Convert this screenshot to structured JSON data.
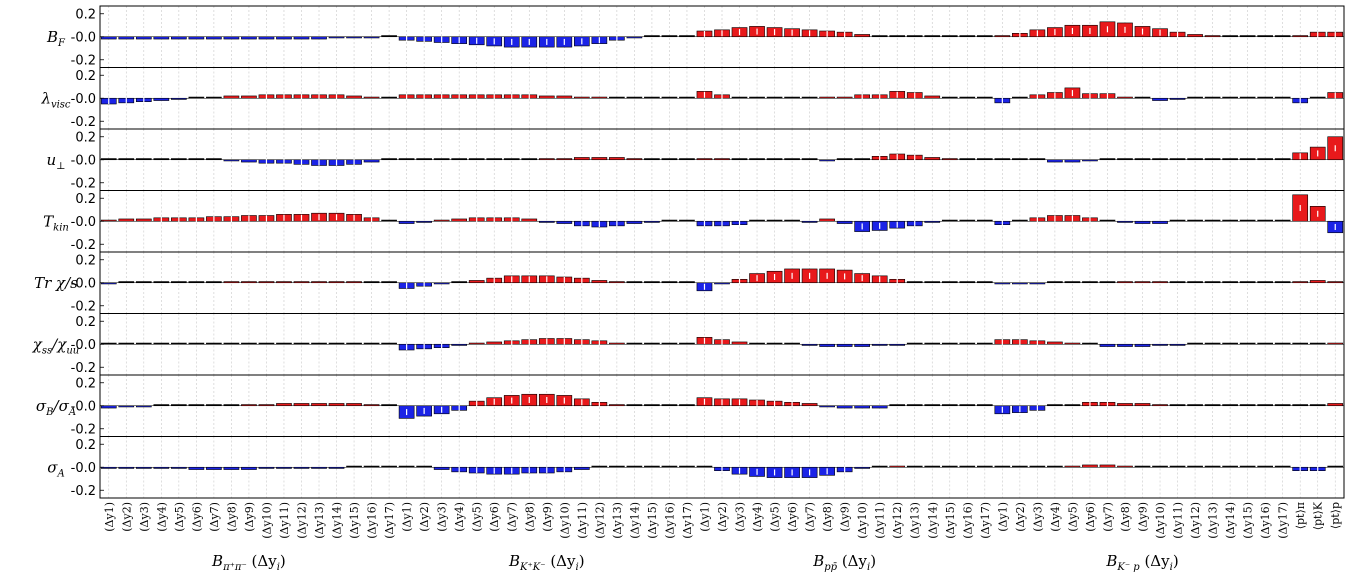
{
  "chart_data": {
    "type": "bar",
    "ylim": [
      -0.25,
      0.25
    ],
    "yticks": [
      "0.2",
      "-0.0",
      "-0.2"
    ],
    "grid": "vertical dashed",
    "colors": {
      "positive": "#e8191b",
      "negative": "#1b23e6",
      "edge": "#000000"
    },
    "groups": [
      {
        "label": "B_{π⁺π⁻}(Δy_i)",
        "base": "B",
        "sub": "π⁺π⁻",
        "arg": "(Δy",
        "argsub": "i",
        "tail": ")",
        "count": 17
      },
      {
        "label": "B_{K⁺K⁻}(Δy_i)",
        "base": "B",
        "sub": "K⁺K⁻",
        "arg": "(Δy",
        "argsub": "i",
        "tail": ")",
        "count": 17
      },
      {
        "label": "B_{pp̄}(Δy_i)",
        "base": "B",
        "sub": "pp̄",
        "arg": "(Δy",
        "argsub": "i",
        "tail": ")",
        "count": 17
      },
      {
        "label": "B_{K⁻p}(Δy_i)",
        "base": "B",
        "sub": "K⁻ p",
        "arg": "(Δy",
        "argsub": "i",
        "tail": ")",
        "count": 17
      }
    ],
    "categories": [
      "(Δy1)",
      "(Δy2)",
      "(Δy3)",
      "(Δy4)",
      "(Δy5)",
      "(Δy6)",
      "(Δy7)",
      "(Δy8)",
      "(Δy9)",
      "(Δy10)",
      "(Δy11)",
      "(Δy12)",
      "(Δy13)",
      "(Δy14)",
      "(Δy15)",
      "(Δy16)",
      "(Δy17)",
      "(Δy1)",
      "(Δy2)",
      "(Δy3)",
      "(Δy4)",
      "(Δy5)",
      "(Δy6)",
      "(Δy7)",
      "(Δy8)",
      "(Δy9)",
      "(Δy10)",
      "(Δy11)",
      "(Δy12)",
      "(Δy13)",
      "(Δy14)",
      "(Δy15)",
      "(Δy16)",
      "(Δy17)",
      "(Δy1)",
      "(Δy2)",
      "(Δy3)",
      "(Δy4)",
      "(Δy5)",
      "(Δy6)",
      "(Δy7)",
      "(Δy8)",
      "(Δy9)",
      "(Δy10)",
      "(Δy11)",
      "(Δy12)",
      "(Δy13)",
      "(Δy14)",
      "(Δy15)",
      "(Δy16)",
      "(Δy17)",
      "(Δy1)",
      "(Δy2)",
      "(Δy3)",
      "(Δy4)",
      "(Δy5)",
      "(Δy6)",
      "(Δy7)",
      "(Δy8)",
      "(Δy9)",
      "(Δy10)",
      "(Δy11)",
      "(Δy12)",
      "(Δy13)",
      "(Δy14)",
      "(Δy15)",
      "(Δy16)",
      "(Δy17)",
      "⟨pt⟩π",
      "⟨pt⟩K",
      "⟨pt⟩p"
    ],
    "series": [
      {
        "name": "B_F",
        "label": {
          "base": "B",
          "sub": "F"
        },
        "values": [
          -0.02,
          -0.02,
          -0.02,
          -0.02,
          -0.02,
          -0.02,
          -0.02,
          -0.02,
          -0.02,
          -0.02,
          -0.02,
          -0.02,
          -0.02,
          -0.01,
          -0.01,
          -0.01,
          0.0,
          -0.03,
          -0.04,
          -0.05,
          -0.06,
          -0.07,
          -0.08,
          -0.09,
          -0.09,
          -0.09,
          -0.09,
          -0.08,
          -0.06,
          -0.03,
          -0.01,
          0.0,
          0.0,
          0.0,
          0.05,
          0.06,
          0.08,
          0.09,
          0.08,
          0.07,
          0.06,
          0.05,
          0.04,
          0.02,
          0.0,
          0.0,
          0.0,
          0.0,
          0.0,
          0.0,
          0.0,
          0.01,
          0.03,
          0.06,
          0.08,
          0.1,
          0.1,
          0.13,
          0.12,
          0.09,
          0.07,
          0.04,
          0.02,
          0.01,
          0.0,
          0.0,
          0.0,
          0.0,
          0.01,
          0.04,
          0.04
        ]
      },
      {
        "name": "λ_visc",
        "label": {
          "base": "λ",
          "sub": "visc"
        },
        "values": [
          -0.05,
          -0.04,
          -0.03,
          -0.02,
          -0.01,
          0.0,
          0.0,
          0.02,
          0.02,
          0.03,
          0.03,
          0.03,
          0.03,
          0.03,
          0.02,
          0.01,
          0.0,
          0.03,
          0.03,
          0.03,
          0.03,
          0.03,
          0.03,
          0.03,
          0.03,
          0.02,
          0.02,
          0.01,
          0.01,
          0.0,
          0.0,
          0.0,
          0.0,
          0.0,
          0.06,
          0.03,
          0.0,
          0.0,
          0.0,
          0.0,
          0.0,
          0.01,
          0.01,
          0.03,
          0.03,
          0.06,
          0.05,
          0.02,
          0.0,
          0.0,
          0.0,
          -0.04,
          0.0,
          0.03,
          0.05,
          0.09,
          0.04,
          0.04,
          0.01,
          0.0,
          -0.02,
          -0.01,
          0.0,
          0.0,
          0.0,
          0.0,
          0.0,
          0.0,
          -0.04,
          0.0,
          0.05
        ]
      },
      {
        "name": "u_⊥",
        "label": {
          "base": "u",
          "sub": "⊥"
        },
        "values": [
          0.0,
          0.0,
          0.0,
          0.0,
          0.0,
          0.0,
          0.0,
          -0.01,
          -0.02,
          -0.03,
          -0.03,
          -0.04,
          -0.05,
          -0.05,
          -0.04,
          -0.02,
          0.0,
          0.0,
          0.0,
          0.0,
          0.0,
          0.0,
          0.0,
          0.0,
          0.0,
          0.01,
          0.01,
          0.02,
          0.02,
          0.02,
          0.01,
          0.0,
          0.0,
          0.0,
          0.01,
          0.01,
          0.0,
          0.0,
          0.0,
          0.0,
          0.0,
          -0.01,
          0.0,
          0.0,
          0.03,
          0.05,
          0.04,
          0.02,
          0.01,
          0.0,
          0.0,
          0.0,
          0.0,
          0.0,
          -0.02,
          -0.02,
          -0.01,
          0.0,
          0.0,
          0.0,
          0.0,
          0.0,
          0.0,
          0.0,
          0.0,
          0.0,
          0.0,
          0.0,
          0.06,
          0.11,
          0.2
        ]
      },
      {
        "name": "T_kin",
        "label": {
          "base": "T",
          "sub": "kin"
        },
        "values": [
          0.01,
          0.02,
          0.02,
          0.03,
          0.03,
          0.03,
          0.04,
          0.04,
          0.05,
          0.05,
          0.06,
          0.06,
          0.07,
          0.07,
          0.06,
          0.03,
          0.0,
          -0.02,
          -0.01,
          0.01,
          0.02,
          0.03,
          0.03,
          0.03,
          0.02,
          -0.01,
          -0.02,
          -0.04,
          -0.05,
          -0.04,
          -0.02,
          -0.01,
          0.0,
          0.0,
          -0.04,
          -0.04,
          -0.03,
          0.0,
          0.0,
          0.0,
          -0.01,
          0.02,
          -0.02,
          -0.09,
          -0.08,
          -0.06,
          -0.04,
          -0.01,
          0.0,
          0.0,
          0.0,
          -0.03,
          0.0,
          0.03,
          0.05,
          0.05,
          0.03,
          0.0,
          -0.01,
          -0.02,
          -0.02,
          0.0,
          0.0,
          0.0,
          0.0,
          0.0,
          0.0,
          0.0,
          0.23,
          0.13,
          -0.1
        ]
      },
      {
        "name": "Tr χ/s",
        "label": {
          "base": "Tr χ/s",
          "sub": ""
        },
        "values": [
          -0.01,
          0.0,
          0.0,
          0.0,
          0.0,
          0.0,
          0.0,
          0.01,
          0.01,
          0.01,
          0.01,
          0.01,
          0.01,
          0.01,
          0.01,
          0.0,
          0.0,
          -0.05,
          -0.03,
          -0.01,
          0.0,
          0.02,
          0.04,
          0.06,
          0.06,
          0.06,
          0.05,
          0.04,
          0.02,
          0.01,
          0.0,
          0.0,
          0.0,
          0.0,
          -0.07,
          -0.01,
          0.03,
          0.08,
          0.1,
          0.12,
          0.12,
          0.12,
          0.11,
          0.08,
          0.06,
          0.03,
          0.0,
          0.0,
          0.0,
          0.0,
          0.0,
          -0.01,
          -0.01,
          -0.01,
          0.0,
          0.0,
          0.0,
          0.0,
          0.01,
          0.01,
          0.01,
          0.0,
          0.0,
          0.0,
          0.0,
          0.0,
          0.0,
          0.0,
          0.01,
          0.02,
          0.01
        ]
      },
      {
        "name": "χ_ss/χ_uu",
        "label": {
          "base": "χ",
          "sub": "ss",
          "tail": "/χ",
          "tailsub": "uu"
        },
        "values": [
          0.0,
          0.0,
          0.0,
          0.0,
          0.0,
          0.0,
          0.0,
          0.0,
          0.0,
          0.0,
          0.0,
          0.0,
          0.0,
          0.0,
          0.0,
          0.0,
          0.0,
          -0.05,
          -0.04,
          -0.03,
          -0.01,
          0.01,
          0.02,
          0.03,
          0.04,
          0.05,
          0.05,
          0.04,
          0.03,
          0.01,
          0.0,
          0.0,
          0.0,
          0.0,
          0.06,
          0.04,
          0.02,
          0.0,
          0.0,
          0.0,
          -0.01,
          -0.02,
          -0.02,
          -0.02,
          -0.01,
          -0.01,
          0.0,
          0.0,
          0.0,
          0.0,
          0.0,
          0.04,
          0.04,
          0.03,
          0.02,
          0.01,
          0.0,
          -0.02,
          -0.02,
          -0.02,
          -0.01,
          -0.01,
          0.0,
          0.0,
          0.0,
          0.0,
          0.0,
          0.0,
          0.0,
          0.0,
          0.01
        ]
      },
      {
        "name": "σ_B/σ_A",
        "label": {
          "base": "σ",
          "sub": "B",
          "tail": "/σ",
          "tailsub": "A"
        },
        "values": [
          -0.02,
          -0.01,
          -0.01,
          0.0,
          0.0,
          0.0,
          0.0,
          0.0,
          0.01,
          0.01,
          0.02,
          0.02,
          0.02,
          0.02,
          0.02,
          0.01,
          0.0,
          -0.11,
          -0.09,
          -0.07,
          -0.04,
          0.04,
          0.07,
          0.09,
          0.1,
          0.1,
          0.09,
          0.06,
          0.03,
          0.01,
          0.0,
          0.0,
          0.0,
          0.0,
          0.07,
          0.06,
          0.06,
          0.05,
          0.04,
          0.03,
          0.02,
          -0.01,
          -0.02,
          -0.02,
          -0.02,
          0.0,
          0.0,
          0.0,
          0.0,
          0.0,
          0.0,
          -0.07,
          -0.06,
          -0.04,
          0.0,
          0.0,
          0.03,
          0.03,
          0.02,
          0.02,
          0.01,
          0.0,
          0.0,
          0.0,
          0.0,
          0.0,
          0.0,
          0.0,
          0.0,
          0.0,
          0.02
        ]
      },
      {
        "name": "σ_A",
        "label": {
          "base": "σ",
          "sub": "A"
        },
        "values": [
          -0.01,
          -0.01,
          -0.01,
          -0.01,
          -0.01,
          -0.02,
          -0.02,
          -0.02,
          -0.02,
          -0.01,
          -0.01,
          -0.01,
          -0.01,
          -0.01,
          0.0,
          0.0,
          0.0,
          0.0,
          0.0,
          -0.02,
          -0.04,
          -0.05,
          -0.06,
          -0.06,
          -0.05,
          -0.05,
          -0.04,
          -0.02,
          0.0,
          0.0,
          0.0,
          0.0,
          0.0,
          0.0,
          0.0,
          -0.03,
          -0.06,
          -0.08,
          -0.09,
          -0.09,
          -0.09,
          -0.07,
          -0.04,
          -0.01,
          0.0,
          0.01,
          0.0,
          0.0,
          0.0,
          0.0,
          0.0,
          0.0,
          0.0,
          0.0,
          0.0,
          0.01,
          0.02,
          0.02,
          0.01,
          0.0,
          0.0,
          0.0,
          0.0,
          0.0,
          0.0,
          0.0,
          0.0,
          0.0,
          -0.03,
          -0.03,
          0.0
        ]
      }
    ]
  }
}
